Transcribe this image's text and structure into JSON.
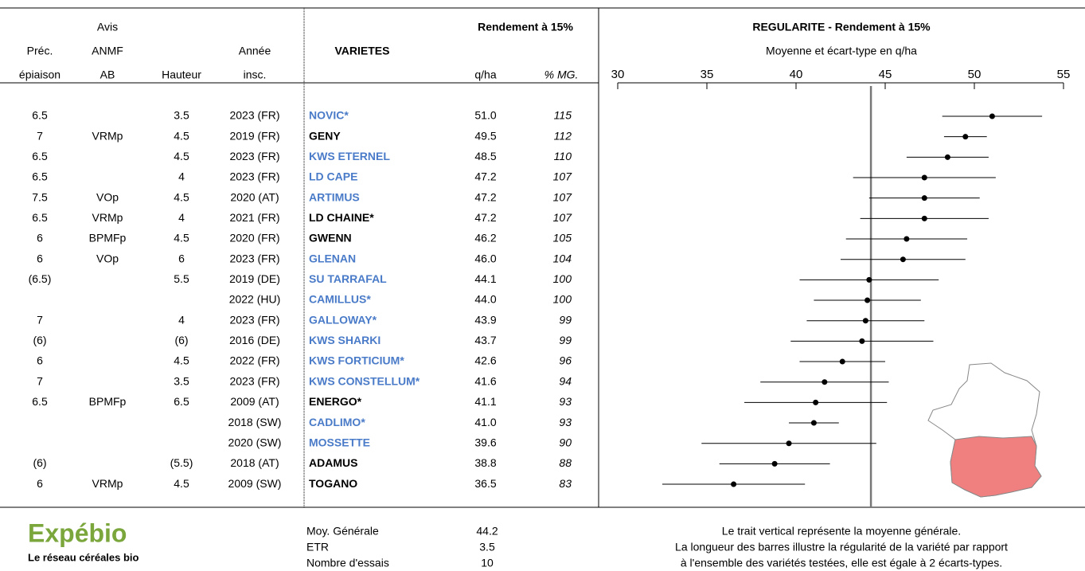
{
  "table": {
    "headers": {
      "avis": "Avis",
      "prec_1": "Préc.",
      "prec_2": "épiaison",
      "anmf_1": "ANMF",
      "anmf_2": "AB",
      "hauteur": "Hauteur",
      "annee_1": "Année",
      "annee_2": "insc.",
      "varietes": "VARIETES",
      "rendement": "Rendement à 15%",
      "qha": "q/ha",
      "mg": "% MG."
    },
    "rows": [
      {
        "prec": "6.5",
        "anmf": "",
        "hauteur": "3.5",
        "annee": "2023 (FR)",
        "name": "NOVIC*",
        "color": "#4a7bc8",
        "qha": {
          "value": 51.0,
          "label": "51.0"
        },
        "mg": 115
      },
      {
        "prec": "7",
        "anmf": "VRMp",
        "hauteur": "4.5",
        "annee": "2019 (FR)",
        "name": "GENY",
        "color": "#000000",
        "qha": {
          "value": 49.5,
          "label": "49.5"
        },
        "mg": 112
      },
      {
        "prec": "6.5",
        "anmf": "",
        "hauteur": "4.5",
        "annee": "2023 (FR)",
        "name": "KWS ETERNEL",
        "color": "#4a7bc8",
        "qha": {
          "value": 48.5,
          "label": "48.5"
        },
        "mg": 110
      },
      {
        "prec": "6.5",
        "anmf": "",
        "hauteur": "4",
        "annee": "2023 (FR)",
        "name": "LD CAPE",
        "color": "#4a7bc8",
        "qha": {
          "value": 47.2,
          "label": "47.2"
        },
        "mg": 107
      },
      {
        "prec": "7.5",
        "anmf": "VOp",
        "hauteur": "4.5",
        "annee": "2020 (AT)",
        "name": "ARTIMUS",
        "color": "#4a7bc8",
        "qha": {
          "value": 47.2,
          "label": "47.2"
        },
        "mg": 107
      },
      {
        "prec": "6.5",
        "anmf": "VRMp",
        "hauteur": "4",
        "annee": "2021 (FR)",
        "name": "LD CHAINE*",
        "color": "#000000",
        "qha": {
          "value": 47.2,
          "label": "47.2"
        },
        "mg": 107
      },
      {
        "prec": "6",
        "anmf": "BPMFp",
        "hauteur": "4.5",
        "annee": "2020 (FR)",
        "name": "GWENN",
        "color": "#000000",
        "qha": {
          "value": 46.2,
          "label": "46.2"
        },
        "mg": 105
      },
      {
        "prec": "6",
        "anmf": "VOp",
        "hauteur": "6",
        "annee": "2023 (FR)",
        "name": "GLENAN",
        "color": "#4a7bc8",
        "qha": {
          "value": 46.0,
          "label": "46.0"
        },
        "mg": 104
      },
      {
        "prec": "(6.5)",
        "anmf": "",
        "hauteur": "5.5",
        "annee": "2019 (DE)",
        "name": "SU TARRAFAL",
        "color": "#4a7bc8",
        "qha": {
          "value": 44.1,
          "label": "44.1"
        },
        "mg": 100
      },
      {
        "prec": "",
        "anmf": "",
        "hauteur": "",
        "annee": "2022 (HU)",
        "name": "CAMILLUS*",
        "color": "#4a7bc8",
        "qha": {
          "value": 44.0,
          "label": "44.0"
        },
        "mg": 100
      },
      {
        "prec": "7",
        "anmf": "",
        "hauteur": "4",
        "annee": "2023 (FR)",
        "name": "GALLOWAY*",
        "color": "#4a7bc8",
        "qha": {
          "value": 43.9,
          "label": "43.9"
        },
        "mg": 99
      },
      {
        "prec": "(6)",
        "anmf": "",
        "hauteur": "(6)",
        "annee": "2016 (DE)",
        "name": "KWS SHARKI",
        "color": "#4a7bc8",
        "qha": {
          "value": 43.7,
          "label": "43.7"
        },
        "mg": 99
      },
      {
        "prec": "6",
        "anmf": "",
        "hauteur": "4.5",
        "annee": "2022 (FR)",
        "name": "KWS FORTICIUM*",
        "color": "#4a7bc8",
        "qha": {
          "value": 42.6,
          "label": "42.6"
        },
        "mg": 96
      },
      {
        "prec": "7",
        "anmf": "",
        "hauteur": "3.5",
        "annee": "2023 (FR)",
        "name": "KWS CONSTELLUM*",
        "color": "#4a7bc8",
        "qha": {
          "value": 41.6,
          "label": "41.6"
        },
        "mg": 94
      },
      {
        "prec": "6.5",
        "anmf": "BPMFp",
        "hauteur": "6.5",
        "annee": "2009 (AT)",
        "name": "ENERGO*",
        "color": "#000000",
        "qha": {
          "value": 41.1,
          "label": "41.1"
        },
        "mg": 93
      },
      {
        "prec": "",
        "anmf": "",
        "hauteur": "",
        "annee": "2018 (SW)",
        "name": "CADLIMO*",
        "color": "#4a7bc8",
        "qha": {
          "value": 41.0,
          "label": "41.0"
        },
        "mg": 93
      },
      {
        "prec": "",
        "anmf": "",
        "hauteur": "",
        "annee": "2020 (SW)",
        "name": "MOSSETTE",
        "color": "#4a7bc8",
        "qha": {
          "value": 39.6,
          "label": "39.6"
        },
        "mg": 90
      },
      {
        "prec": "(6)",
        "anmf": "",
        "hauteur": "(5.5)",
        "annee": "2018 (AT)",
        "name": "ADAMUS",
        "color": "#000000",
        "qha": {
          "value": 38.8,
          "label": "38.8"
        },
        "mg": 88
      },
      {
        "prec": "6",
        "anmf": "VRMp",
        "hauteur": "4.5",
        "annee": "2009 (SW)",
        "name": "TOGANO",
        "color": "#000000",
        "qha": {
          "value": 36.5,
          "label": "36.5"
        },
        "mg": 83
      }
    ]
  },
  "chart": {
    "title": "REGULARITE - Rendement à 15%",
    "subtitle": "Moyenne et écart-type en q/ha",
    "xlim": [
      30,
      55
    ],
    "xticks": [
      30,
      35,
      40,
      45,
      50,
      55
    ],
    "errors": [
      2.8,
      1.2,
      2.3,
      4.0,
      3.1,
      3.6,
      3.4,
      3.5,
      3.9,
      3.0,
      3.3,
      4.0,
      2.4,
      3.6,
      4.0,
      1.4,
      4.9,
      3.1,
      4.0
    ]
  },
  "footer": {
    "logo": "Expébio",
    "tagline": "Le réseau céréales bio",
    "stats": [
      {
        "label": "Moy. Générale",
        "value": {
          "value": 44.2,
          "label": "44.2"
        }
      },
      {
        "label": "ETR",
        "value": "3.5"
      },
      {
        "label": "Nombre d'essais",
        "value": 10
      }
    ],
    "notes": [
      "Le trait vertical représente la moyenne générale.",
      "La longueur des barres illustre la régularité de la variété par rapport",
      "à l'ensemble des variétés testées, elle est égale à 2 écarts-types."
    ]
  }
}
